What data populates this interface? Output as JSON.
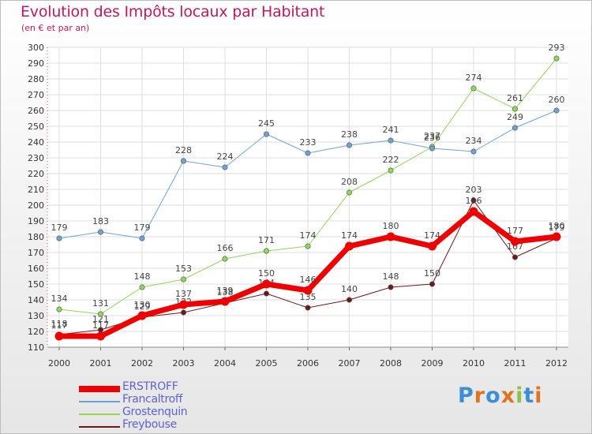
{
  "header": {
    "title": "Evolution des Impôts locaux par Habitant",
    "subtitle": "(en € et par an)"
  },
  "brand": {
    "letters": [
      "P",
      "r",
      "o",
      "x",
      "i",
      "t",
      "i"
    ],
    "colors": [
      "#3a8fd6",
      "#e0731e",
      "#3a8fd6",
      "#e0731e",
      "#8bc34a",
      "#3a8fd6",
      "#e0731e"
    ]
  },
  "chart_data": {
    "type": "line",
    "title": "Evolution des Impôts locaux par Habitant",
    "subtitle": "(en € et par an)",
    "xlabel": "",
    "ylabel": "",
    "x": [
      "2000",
      "2001",
      "2002",
      "2003",
      "2004",
      "2005",
      "2006",
      "2007",
      "2008",
      "2009",
      "2010",
      "2011",
      "2012"
    ],
    "ylim": [
      110,
      300
    ],
    "yticks": [
      110,
      120,
      130,
      140,
      150,
      160,
      170,
      180,
      190,
      200,
      210,
      220,
      230,
      240,
      250,
      260,
      270,
      280,
      290,
      300
    ],
    "grid": true,
    "legend_position": "bottom-left",
    "series": [
      {
        "name": "Freybouse",
        "color": "#6b1a1a",
        "width": 1,
        "values": [
          118,
          121,
          129,
          132,
          138,
          144,
          135,
          140,
          148,
          150,
          203,
          167,
          179
        ]
      },
      {
        "name": "Grostenquin",
        "color": "#8fd65a",
        "width": 1,
        "values": [
          134,
          131,
          148,
          153,
          166,
          171,
          174,
          208,
          222,
          237,
          274,
          261,
          293
        ]
      },
      {
        "name": "Francaltroff",
        "color": "#6fa3d6",
        "width": 1,
        "values": [
          179,
          183,
          179,
          228,
          224,
          245,
          233,
          238,
          241,
          236,
          234,
          249,
          260
        ]
      },
      {
        "name": "ERSTROFF",
        "color": "#ee0000",
        "width": 7,
        "values": [
          117,
          117,
          130,
          137,
          139,
          150,
          146,
          174,
          180,
          174,
          196,
          177,
          180
        ]
      }
    ],
    "legend_order": [
      "ERSTROFF",
      "Francaltroff",
      "Grostenquin",
      "Freybouse"
    ]
  }
}
